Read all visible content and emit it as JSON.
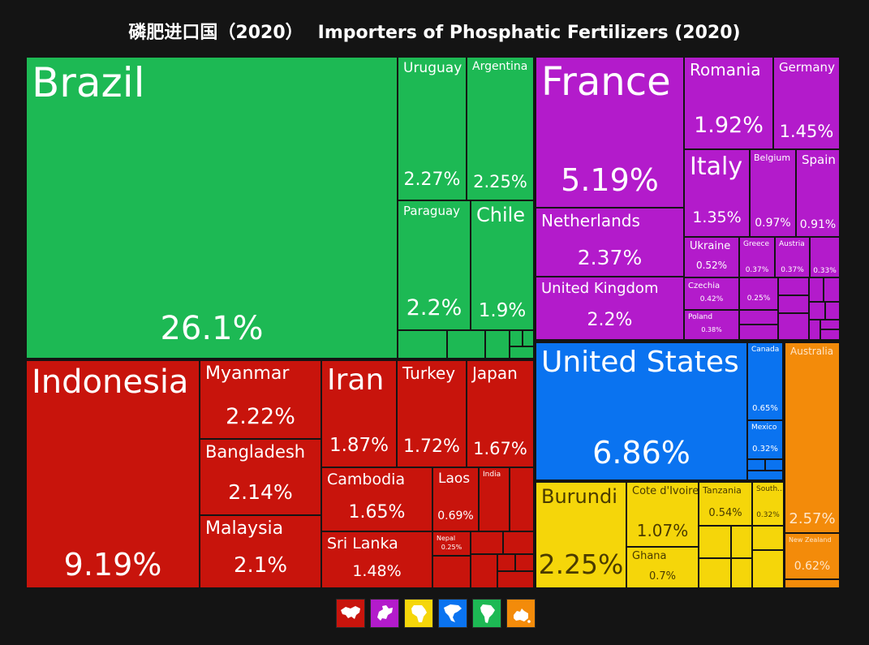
{
  "title": {
    "cn": "磷肥进口国（2020）",
    "en": "Importers of Phosphatic Fertilizers (2020)"
  },
  "colors": {
    "south_america": "#1db954",
    "asia": "#c8140c",
    "europe": "#b31bcb",
    "north_america": "#0a73f0",
    "africa": "#f5d60a",
    "oceania": "#f38b0a",
    "background": "#141414"
  },
  "legend": [
    {
      "region": "asia",
      "icon": "asia-map-icon"
    },
    {
      "region": "europe",
      "icon": "europe-map-icon"
    },
    {
      "region": "africa",
      "icon": "africa-map-icon"
    },
    {
      "region": "north_america",
      "icon": "north-america-map-icon"
    },
    {
      "region": "south_america",
      "icon": "south-america-map-icon"
    },
    {
      "region": "oceania",
      "icon": "oceania-map-icon"
    }
  ],
  "chart_data": {
    "type": "treemap",
    "unit": "%",
    "items": [
      {
        "name": "Brazil",
        "label": "26.1%",
        "value": 26.1,
        "region": "south_america"
      },
      {
        "name": "Uruguay",
        "label": "2.27%",
        "value": 2.27,
        "region": "south_america"
      },
      {
        "name": "Argentina",
        "label": "2.25%",
        "value": 2.25,
        "region": "south_america"
      },
      {
        "name": "Paraguay",
        "label": "2.2%",
        "value": 2.2,
        "region": "south_america"
      },
      {
        "name": "Chile",
        "label": "1.9%",
        "value": 1.9,
        "region": "south_america"
      },
      {
        "name": "France",
        "label": "5.19%",
        "value": 5.19,
        "region": "europe"
      },
      {
        "name": "Romania",
        "label": "1.92%",
        "value": 1.92,
        "region": "europe"
      },
      {
        "name": "Germany",
        "label": "1.45%",
        "value": 1.45,
        "region": "europe"
      },
      {
        "name": "Italy",
        "label": "1.35%",
        "value": 1.35,
        "region": "europe"
      },
      {
        "name": "Belgium",
        "label": "0.97%",
        "value": 0.97,
        "region": "europe"
      },
      {
        "name": "Spain",
        "label": "0.91%",
        "value": 0.91,
        "region": "europe"
      },
      {
        "name": "Netherlands",
        "label": "2.37%",
        "value": 2.37,
        "region": "europe"
      },
      {
        "name": "United Kingdom",
        "label": "2.2%",
        "value": 2.2,
        "region": "europe"
      },
      {
        "name": "Ukraine",
        "label": "0.52%",
        "value": 0.52,
        "region": "europe"
      },
      {
        "name": "Greece",
        "label": "0.37%",
        "value": 0.37,
        "region": "europe"
      },
      {
        "name": "Austria",
        "label": "0.37%",
        "value": 0.37,
        "region": "europe"
      },
      {
        "name": "",
        "label": "0.33%",
        "value": 0.33,
        "region": "europe"
      },
      {
        "name": "Czechia",
        "label": "0.42%",
        "value": 0.42,
        "region": "europe"
      },
      {
        "name": "",
        "label": "0.25%",
        "value": 0.25,
        "region": "europe"
      },
      {
        "name": "Poland",
        "label": "0.38%",
        "value": 0.38,
        "region": "europe"
      },
      {
        "name": "Indonesia",
        "label": "9.19%",
        "value": 9.19,
        "region": "asia"
      },
      {
        "name": "Myanmar",
        "label": "2.22%",
        "value": 2.22,
        "region": "asia"
      },
      {
        "name": "Bangladesh",
        "label": "2.14%",
        "value": 2.14,
        "region": "asia"
      },
      {
        "name": "Malaysia",
        "label": "2.1%",
        "value": 2.1,
        "region": "asia"
      },
      {
        "name": "Iran",
        "label": "1.87%",
        "value": 1.87,
        "region": "asia"
      },
      {
        "name": "Turkey",
        "label": "1.72%",
        "value": 1.72,
        "region": "asia"
      },
      {
        "name": "Japan",
        "label": "1.67%",
        "value": 1.67,
        "region": "asia"
      },
      {
        "name": "Cambodia",
        "label": "1.65%",
        "value": 1.65,
        "region": "asia"
      },
      {
        "name": "Laos",
        "label": "0.69%",
        "value": 0.69,
        "region": "asia"
      },
      {
        "name": "India",
        "label": "",
        "value": null,
        "region": "asia"
      },
      {
        "name": "Sri Lanka",
        "label": "1.48%",
        "value": 1.48,
        "region": "asia"
      },
      {
        "name": "Nepal",
        "label": "0.25%",
        "value": 0.25,
        "region": "asia"
      },
      {
        "name": "United States",
        "label": "6.86%",
        "value": 6.86,
        "region": "north_america"
      },
      {
        "name": "Canada",
        "label": "0.65%",
        "value": 0.65,
        "region": "north_america"
      },
      {
        "name": "Mexico",
        "label": "0.32%",
        "value": 0.32,
        "region": "north_america"
      },
      {
        "name": "Australia",
        "label": "2.57%",
        "value": 2.57,
        "region": "oceania"
      },
      {
        "name": "New Zealand",
        "label": "0.62%",
        "value": 0.62,
        "region": "oceania"
      },
      {
        "name": "Burundi",
        "label": "2.25%",
        "value": 2.25,
        "region": "africa"
      },
      {
        "name": "Cote d'Ivoire",
        "label": "1.07%",
        "value": 1.07,
        "region": "africa"
      },
      {
        "name": "Ghana",
        "label": "0.7%",
        "value": 0.7,
        "region": "africa"
      },
      {
        "name": "Tanzania",
        "label": "0.54%",
        "value": 0.54,
        "region": "africa"
      },
      {
        "name": "South...",
        "label": "0.32%",
        "value": 0.32,
        "region": "africa"
      }
    ]
  }
}
